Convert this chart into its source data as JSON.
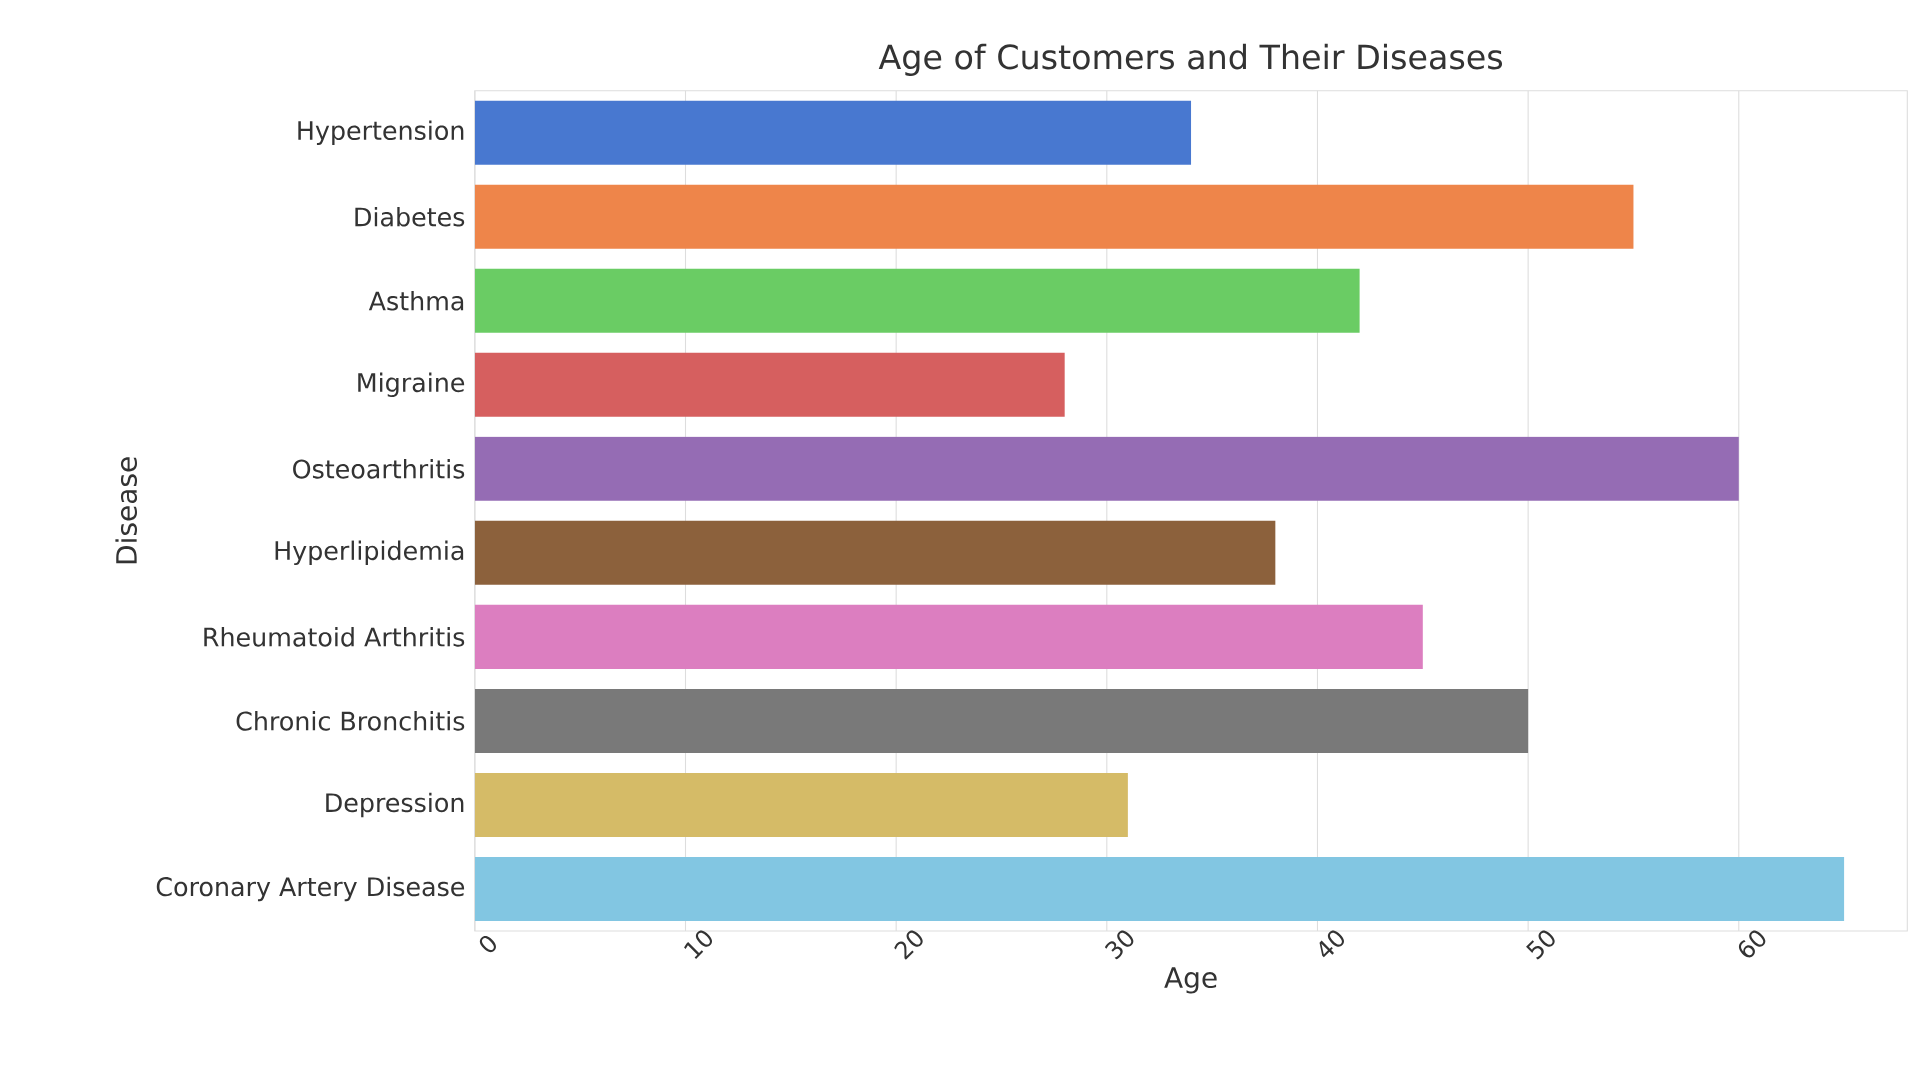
{
  "chart_data": {
    "type": "bar",
    "orientation": "horizontal",
    "title": "Age of Customers and Their Diseases",
    "xlabel": "Age",
    "ylabel": "Disease",
    "categories": [
      "Hypertension",
      "Diabetes",
      "Asthma",
      "Migraine",
      "Osteoarthritis",
      "Hyperlipidemia",
      "Rheumatoid Arthritis",
      "Chronic Bronchitis",
      "Depression",
      "Coronary Artery Disease"
    ],
    "values": [
      34,
      55,
      42,
      28,
      60,
      38,
      45,
      50,
      31,
      65
    ],
    "colors": [
      "#4878d0",
      "#ee854a",
      "#6acc64",
      "#d65f5f",
      "#956cb4",
      "#8c613c",
      "#dc7ec0",
      "#797979",
      "#d5bb67",
      "#82c6e2"
    ],
    "xlim": [
      0,
      68
    ],
    "xticks": [
      0,
      10,
      20,
      30,
      40,
      50,
      60
    ],
    "grid": "x"
  }
}
